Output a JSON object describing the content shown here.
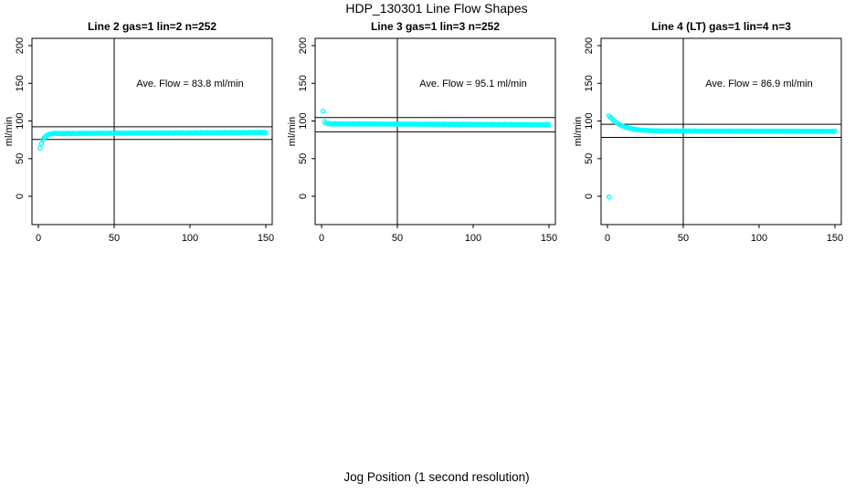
{
  "page": {
    "main_title": "HDP_130301  Line Flow Shapes",
    "x_axis_label": "Jog Position (1 second resolution)"
  },
  "colors": {
    "background": "#ffffff",
    "point_stroke": "#00ffff",
    "axis_and_text": "#000000"
  },
  "chart_data": {
    "type": "scatter",
    "title": "HDP_130301  Line Flow Shapes",
    "xlabel": "Jog Position (1 second resolution)",
    "ylabel": "ml/min",
    "point_style": "open-circle",
    "grid": false,
    "legend": false,
    "xlim": [
      0,
      150
    ],
    "ylim": [
      0,
      200
    ],
    "x_ticks": [
      0,
      50,
      100,
      150
    ],
    "y_ticks": [
      0,
      50,
      100,
      150,
      200
    ],
    "reference_vline_x": 50,
    "panels": [
      {
        "title": "Line 2 gas=1 lin=2 n=252",
        "annotation": "Ave. Flow =  83.8  ml/min",
        "ave_flow_ml_min": 83.8,
        "n": 252,
        "ref_hlines": [
          92.2,
          75.4
        ],
        "x_start": 1,
        "x_step": 1,
        "y_values": [
          64,
          70,
          75,
          78,
          80,
          81.3,
          82.2,
          82.8,
          83.1,
          83.3,
          83.7,
          83.2,
          83.5,
          83.1,
          83.7,
          83.2,
          83.5,
          83.1,
          83.8,
          83.3,
          83.6,
          83.2,
          83.8,
          83.3,
          83.6,
          83.2,
          83.9,
          83.4,
          83.7,
          83.3,
          83.9,
          83.4,
          83.7,
          83.3,
          83.9,
          83.4,
          83.7,
          83.3,
          84.0,
          83.5,
          83.8,
          83.4,
          84.0,
          83.5,
          83.8,
          83.4,
          84.1,
          83.6,
          83.9,
          83.5,
          84.1,
          83.6,
          83.9,
          83.5,
          84.1,
          83.6,
          83.9,
          83.5,
          84.2,
          83.7,
          84.0,
          83.6,
          84.2,
          83.7,
          84.0,
          83.6,
          84.3,
          83.8,
          84.1,
          83.7,
          84.3,
          83.8,
          84.1,
          83.7,
          84.3,
          83.8,
          84.1,
          83.7,
          84.4,
          83.9,
          84.2,
          83.8,
          84.4,
          83.9,
          84.2,
          83.8,
          84.5,
          84.0,
          84.3,
          83.9,
          84.5,
          84.0,
          84.3,
          83.9,
          84.5,
          84.0,
          84.3,
          83.9,
          84.6,
          84.1,
          84.4,
          84.0,
          84.6,
          84.1,
          84.4,
          84.0,
          84.7,
          84.2,
          84.5,
          84.1,
          84.7,
          84.2,
          84.5,
          84.1,
          84.7,
          84.2,
          84.5,
          84.1,
          84.8,
          84.3,
          84.6,
          84.2,
          84.8,
          84.3,
          84.6,
          84.2,
          84.9,
          84.4,
          84.7,
          84.3,
          84.9,
          84.4,
          84.7,
          84.3,
          84.9,
          84.4,
          84.7,
          84.3,
          85.0,
          84.5,
          84.8,
          84.4,
          85.0,
          84.5,
          84.8,
          84.4,
          85.1,
          84.6,
          84.9,
          84.5
        ],
        "extra_points": []
      },
      {
        "title": "Line 3 gas=1 lin=3 n=252",
        "annotation": "Ave. Flow =  95.1  ml/min",
        "ave_flow_ml_min": 95.1,
        "n": 252,
        "ref_hlines": [
          104.6,
          85.6
        ],
        "x_start": 1,
        "x_step": 1,
        "y_values": [
          113,
          99,
          97,
          96.3,
          96.6,
          95.9,
          96.4,
          95.8,
          96.6,
          95.9,
          96.4,
          95.8,
          96.5,
          95.8,
          96.3,
          95.7,
          96.5,
          95.8,
          96.3,
          95.7,
          96.5,
          95.8,
          96.3,
          95.7,
          96.4,
          95.7,
          96.2,
          95.6,
          96.4,
          95.7,
          96.2,
          95.6,
          96.4,
          95.7,
          96.2,
          95.6,
          96.3,
          95.6,
          96.1,
          95.5,
          96.3,
          95.6,
          96.1,
          95.5,
          96.3,
          95.6,
          96.1,
          95.5,
          96.3,
          95.6,
          96.1,
          95.5,
          96.2,
          95.5,
          96.0,
          95.4,
          96.2,
          95.5,
          96.0,
          95.4,
          96.2,
          95.5,
          96.0,
          95.4,
          96.1,
          95.4,
          95.9,
          95.3,
          96.1,
          95.4,
          95.9,
          95.3,
          96.1,
          95.4,
          95.9,
          95.3,
          96.0,
          95.3,
          95.8,
          95.2,
          96.0,
          95.3,
          95.8,
          95.2,
          96.0,
          95.3,
          95.8,
          95.2,
          95.9,
          95.2,
          95.7,
          95.1,
          95.9,
          95.2,
          95.7,
          95.1,
          95.9,
          95.2,
          95.7,
          95.1,
          95.8,
          95.1,
          95.6,
          95.0,
          95.8,
          95.1,
          95.6,
          95.0,
          95.8,
          95.1,
          95.6,
          95.0,
          95.7,
          95.0,
          95.5,
          94.9,
          95.7,
          95.0,
          95.5,
          94.9,
          95.7,
          95.0,
          95.5,
          94.9,
          95.6,
          94.9,
          95.4,
          94.8,
          95.6,
          94.9,
          95.4,
          94.8,
          95.6,
          94.9,
          95.4,
          94.8,
          95.5,
          94.8,
          95.3,
          94.7,
          95.5,
          94.8,
          95.3,
          94.7,
          95.5,
          94.8,
          95.3,
          94.7,
          95.4,
          94.8
        ],
        "extra_points": []
      },
      {
        "title": "Line 4 (LT) gas=1 lin=4 n=3",
        "annotation": "Ave. Flow =  86.9  ml/min",
        "ave_flow_ml_min": 86.9,
        "n": 3,
        "ref_hlines": [
          95.6,
          78.2
        ],
        "x_start": 1,
        "x_step": 1,
        "y_values": [
          107,
          105,
          102.9,
          100.9,
          99.2,
          97.7,
          96.4,
          95.3,
          94.2,
          93.3,
          92.5,
          91.8,
          91.2,
          90.6,
          90.2,
          89.7,
          89.3,
          89,
          88.7,
          88.5,
          88.2,
          88,
          87.8,
          87.7,
          87.5,
          87.4,
          87.3,
          87.2,
          87.1,
          87.1,
          87,
          86.9,
          86.9,
          86.8,
          86.8,
          86.9,
          86.5,
          87,
          86.4,
          86.9,
          86.5,
          87,
          86.4,
          86.9,
          86.5,
          86.9,
          86.4,
          86.9,
          86.5,
          86.9,
          86.4,
          86.9,
          86.4,
          86.9,
          86.4,
          86.8,
          86.4,
          86.9,
          86.3,
          86.8,
          86.4,
          86.9,
          86.3,
          86.8,
          86.4,
          86.9,
          86.3,
          86.8,
          86.4,
          86.8,
          86.3,
          86.8,
          86.4,
          86.8,
          86.3,
          86.8,
          86.3,
          86.8,
          86.3,
          86.8,
          86.3,
          86.8,
          86.2,
          86.7,
          86.3,
          86.8,
          86.2,
          86.7,
          86.3,
          86.8,
          86.2,
          86.7,
          86.3,
          86.8,
          86.2,
          86.7,
          86.3,
          86.7,
          86.2,
          86.7,
          86.3,
          86.7,
          86.2,
          86.7,
          86.2,
          86.7,
          86.2,
          86.6,
          86.2,
          86.7,
          86.1,
          86.6,
          86.2,
          86.7,
          86.1,
          86.6,
          86.2,
          86.7,
          86.1,
          86.6,
          86.2,
          86.6,
          86.1,
          86.6,
          86.2,
          86.6,
          86.1,
          86.6,
          86.1,
          86.6,
          86.1,
          86.5,
          86.1,
          86.6,
          86.0,
          86.5,
          86.1,
          86.6,
          86.0,
          86.5,
          86.1,
          86.6,
          86.0,
          86.5,
          86.1,
          86.5,
          86.0,
          86.5,
          86.1,
          86.5
        ],
        "extra_points": [
          [
            1,
            -1
          ]
        ]
      }
    ]
  }
}
